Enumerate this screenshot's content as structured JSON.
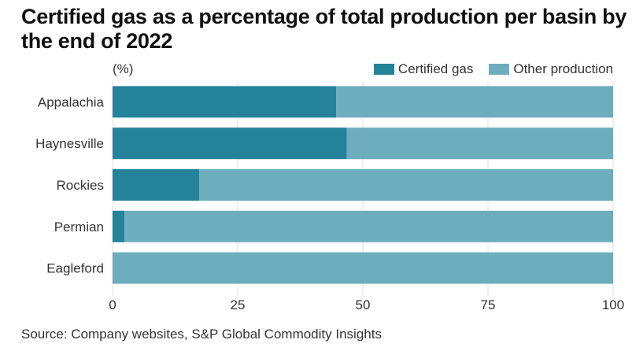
{
  "chart_data": {
    "type": "bar",
    "orientation": "horizontal",
    "stacked": true,
    "title": "Certified gas as a percentage of total production per basin by the end of 2022",
    "unit_label": "(%)",
    "categories": [
      "Appalachia",
      "Haynesville",
      "Rockies",
      "Permian",
      "Eagleford"
    ],
    "series": [
      {
        "name": "Certified gas",
        "color": "#248299",
        "values": [
          44.7,
          46.8,
          17.3,
          2.4,
          0
        ]
      },
      {
        "name": "Other production",
        "color": "#6eadbd",
        "values": [
          55.3,
          53.2,
          82.7,
          97.6,
          100
        ]
      }
    ],
    "xlim": [
      0,
      100
    ],
    "xticks": [
      0,
      25,
      50,
      75,
      100
    ],
    "grid": true,
    "legend_position": "top-right",
    "source": "Source: Company websites, S&P Global Commodity Insights"
  }
}
